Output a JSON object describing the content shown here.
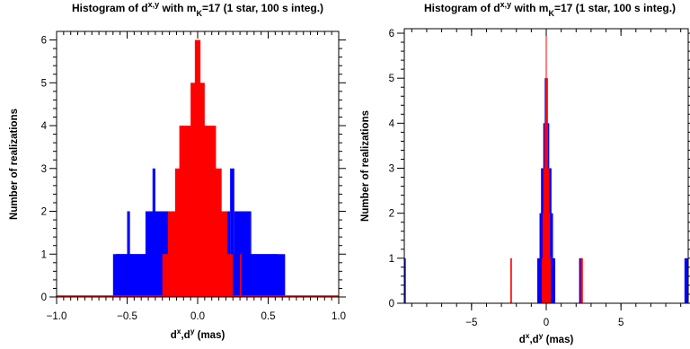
{
  "chart_data": [
    {
      "type": "bar",
      "title": {
        "prefix": "Histogram of d",
        "sup": "x,y",
        "middle": " with m",
        "sub": "K",
        "suffix": "=17 (1 star, 100 s integ.)"
      },
      "xlabel": {
        "a": "d",
        "a_sup": "x",
        "b": ",d",
        "b_sup": "y",
        "rest": " (mas)"
      },
      "ylabel": "Number of realizations",
      "xlim": [
        -1.0,
        1.0
      ],
      "ylim": [
        0,
        6.2
      ],
      "xticks": [
        -1.0,
        -0.5,
        0.0,
        0.5,
        1.0
      ],
      "xtick_labels": [
        "−1.0",
        "−0.5",
        "0.0",
        "0.5",
        "1.0"
      ],
      "yticks": [
        0,
        1,
        2,
        3,
        4,
        5,
        6
      ],
      "ytick_labels": [
        "0",
        "1",
        "2",
        "3",
        "4",
        "5",
        "6"
      ],
      "grid": false,
      "series": [
        {
          "color": "#0000ff",
          "bars": [
            [
              -0.6,
              0.57,
              1
            ],
            [
              -0.57,
              -0.37,
              1
            ],
            [
              -0.5,
              -0.48,
              2
            ],
            [
              -0.37,
              -0.12,
              2
            ],
            [
              -0.32,
              -0.3,
              3
            ],
            [
              -0.25,
              -0.2,
              1
            ],
            [
              -0.12,
              -0.08,
              3
            ],
            [
              -0.08,
              0.08,
              3
            ],
            [
              0.04,
              0.06,
              4
            ],
            [
              0.08,
              0.13,
              3
            ],
            [
              0.13,
              0.23,
              2
            ],
            [
              0.23,
              0.26,
              3
            ],
            [
              0.26,
              0.37,
              2
            ],
            [
              0.26,
              0.45,
              1
            ],
            [
              0.45,
              0.62,
              1
            ],
            [
              0.37,
              0.38,
              2
            ],
            [
              -0.58,
              -0.55,
              1
            ]
          ]
        },
        {
          "color": "#ff0000",
          "bars": [
            [
              -0.25,
              0.25,
              1
            ],
            [
              -0.21,
              0.21,
              2
            ],
            [
              -0.16,
              0.17,
              3
            ],
            [
              -0.13,
              0.13,
              4
            ],
            [
              -0.05,
              0.05,
              5
            ],
            [
              -0.02,
              0.02,
              6
            ],
            [
              0.3,
              0.31,
              1
            ],
            [
              -0.26,
              -0.25,
              0
            ],
            [
              0.09,
              0.1,
              4
            ],
            [
              -0.11,
              -0.1,
              4
            ]
          ]
        }
      ]
    },
    {
      "type": "bar",
      "title": {
        "prefix": "Histogram of d",
        "sup": "x,y",
        "middle": " with m",
        "sub": "K",
        "suffix": "=17 (1 star, 100 s integ.)"
      },
      "xlabel": {
        "a": "d",
        "a_sup": "x",
        "b": ",d",
        "b_sup": "y",
        "rest": " (mas)"
      },
      "ylabel": "Number of realizations",
      "xlim": [
        -9.5,
        9.5
      ],
      "ylim": [
        0,
        6.1
      ],
      "xticks": [
        -5,
        0,
        5
      ],
      "xtick_labels": [
        "−5",
        "0",
        "5"
      ],
      "yticks": [
        0,
        1,
        2,
        3,
        4,
        5,
        6
      ],
      "ytick_labels": [
        "0",
        "1",
        "2",
        "3",
        "4",
        "5",
        "6"
      ],
      "grid": false,
      "series": [
        {
          "color": "#0000ff",
          "bars": [
            [
              -9.5,
              -9.4,
              1
            ],
            [
              -0.6,
              0.6,
              1
            ],
            [
              -0.45,
              0.45,
              2
            ],
            [
              -0.35,
              0.35,
              3
            ],
            [
              -0.2,
              0.2,
              4
            ],
            [
              -0.1,
              0.1,
              5
            ],
            [
              2.2,
              2.4,
              1
            ],
            [
              9.25,
              9.5,
              1
            ]
          ]
        },
        {
          "color": "#ff0000",
          "bars": [
            [
              -2.4,
              -2.3,
              1
            ],
            [
              -0.3,
              0.3,
              1
            ],
            [
              -0.25,
              0.25,
              2
            ],
            [
              -0.2,
              0.2,
              3
            ],
            [
              -0.12,
              0.12,
              4
            ],
            [
              -0.06,
              0.06,
              5
            ],
            [
              -0.03,
              0.03,
              6
            ],
            [
              2.3,
              2.45,
              1
            ]
          ]
        }
      ]
    }
  ]
}
